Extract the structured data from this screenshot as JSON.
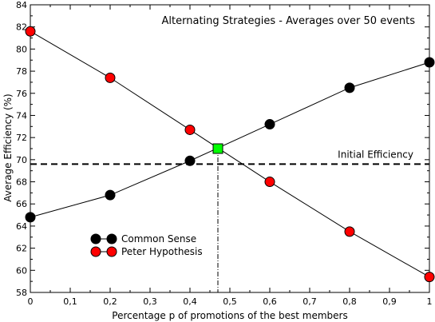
{
  "chart_data": {
    "type": "line",
    "title": "Alternating Strategies - Averages over 50 events",
    "xlabel": "Percentage p of promotions of the best members",
    "ylabel": "Average Efficiency (%)",
    "xlim": [
      0,
      1
    ],
    "ylim": [
      58,
      84
    ],
    "x_ticks": [
      0,
      0.1,
      0.2,
      0.3,
      0.4,
      0.5,
      0.6,
      0.7,
      0.8,
      0.9,
      1
    ],
    "x_tick_labels": [
      "0",
      "0,1",
      "0,2",
      "0,3",
      "0,4",
      "0,5",
      "0,6",
      "0,7",
      "0,8",
      "0,9",
      "1"
    ],
    "y_ticks": [
      58,
      60,
      62,
      64,
      66,
      68,
      70,
      72,
      74,
      76,
      78,
      80,
      82,
      84
    ],
    "y_tick_labels": [
      "58",
      "60",
      "62",
      "64",
      "66",
      "68",
      "70",
      "72",
      "74",
      "76",
      "78",
      "80",
      "82",
      "84"
    ],
    "grid": false,
    "legend_position": "bottom-left",
    "series": [
      {
        "name": "Common Sense",
        "color": "#000000",
        "x": [
          0,
          0.2,
          0.4,
          0.6,
          0.8,
          1
        ],
        "y": [
          64.8,
          66.8,
          69.9,
          73.2,
          76.5,
          78.8
        ]
      },
      {
        "name": "Peter Hypothesis",
        "color": "#ff0000",
        "x": [
          0,
          0.2,
          0.4,
          0.6,
          0.8,
          1
        ],
        "y": [
          81.6,
          77.4,
          72.7,
          68.0,
          63.5,
          59.4
        ]
      }
    ],
    "reference_line": {
      "label": "Initial Efficiency",
      "y": 69.6,
      "style": "dashed"
    },
    "intersection": {
      "x": 0.47,
      "y": 71.0,
      "color": "#00ff00"
    }
  }
}
